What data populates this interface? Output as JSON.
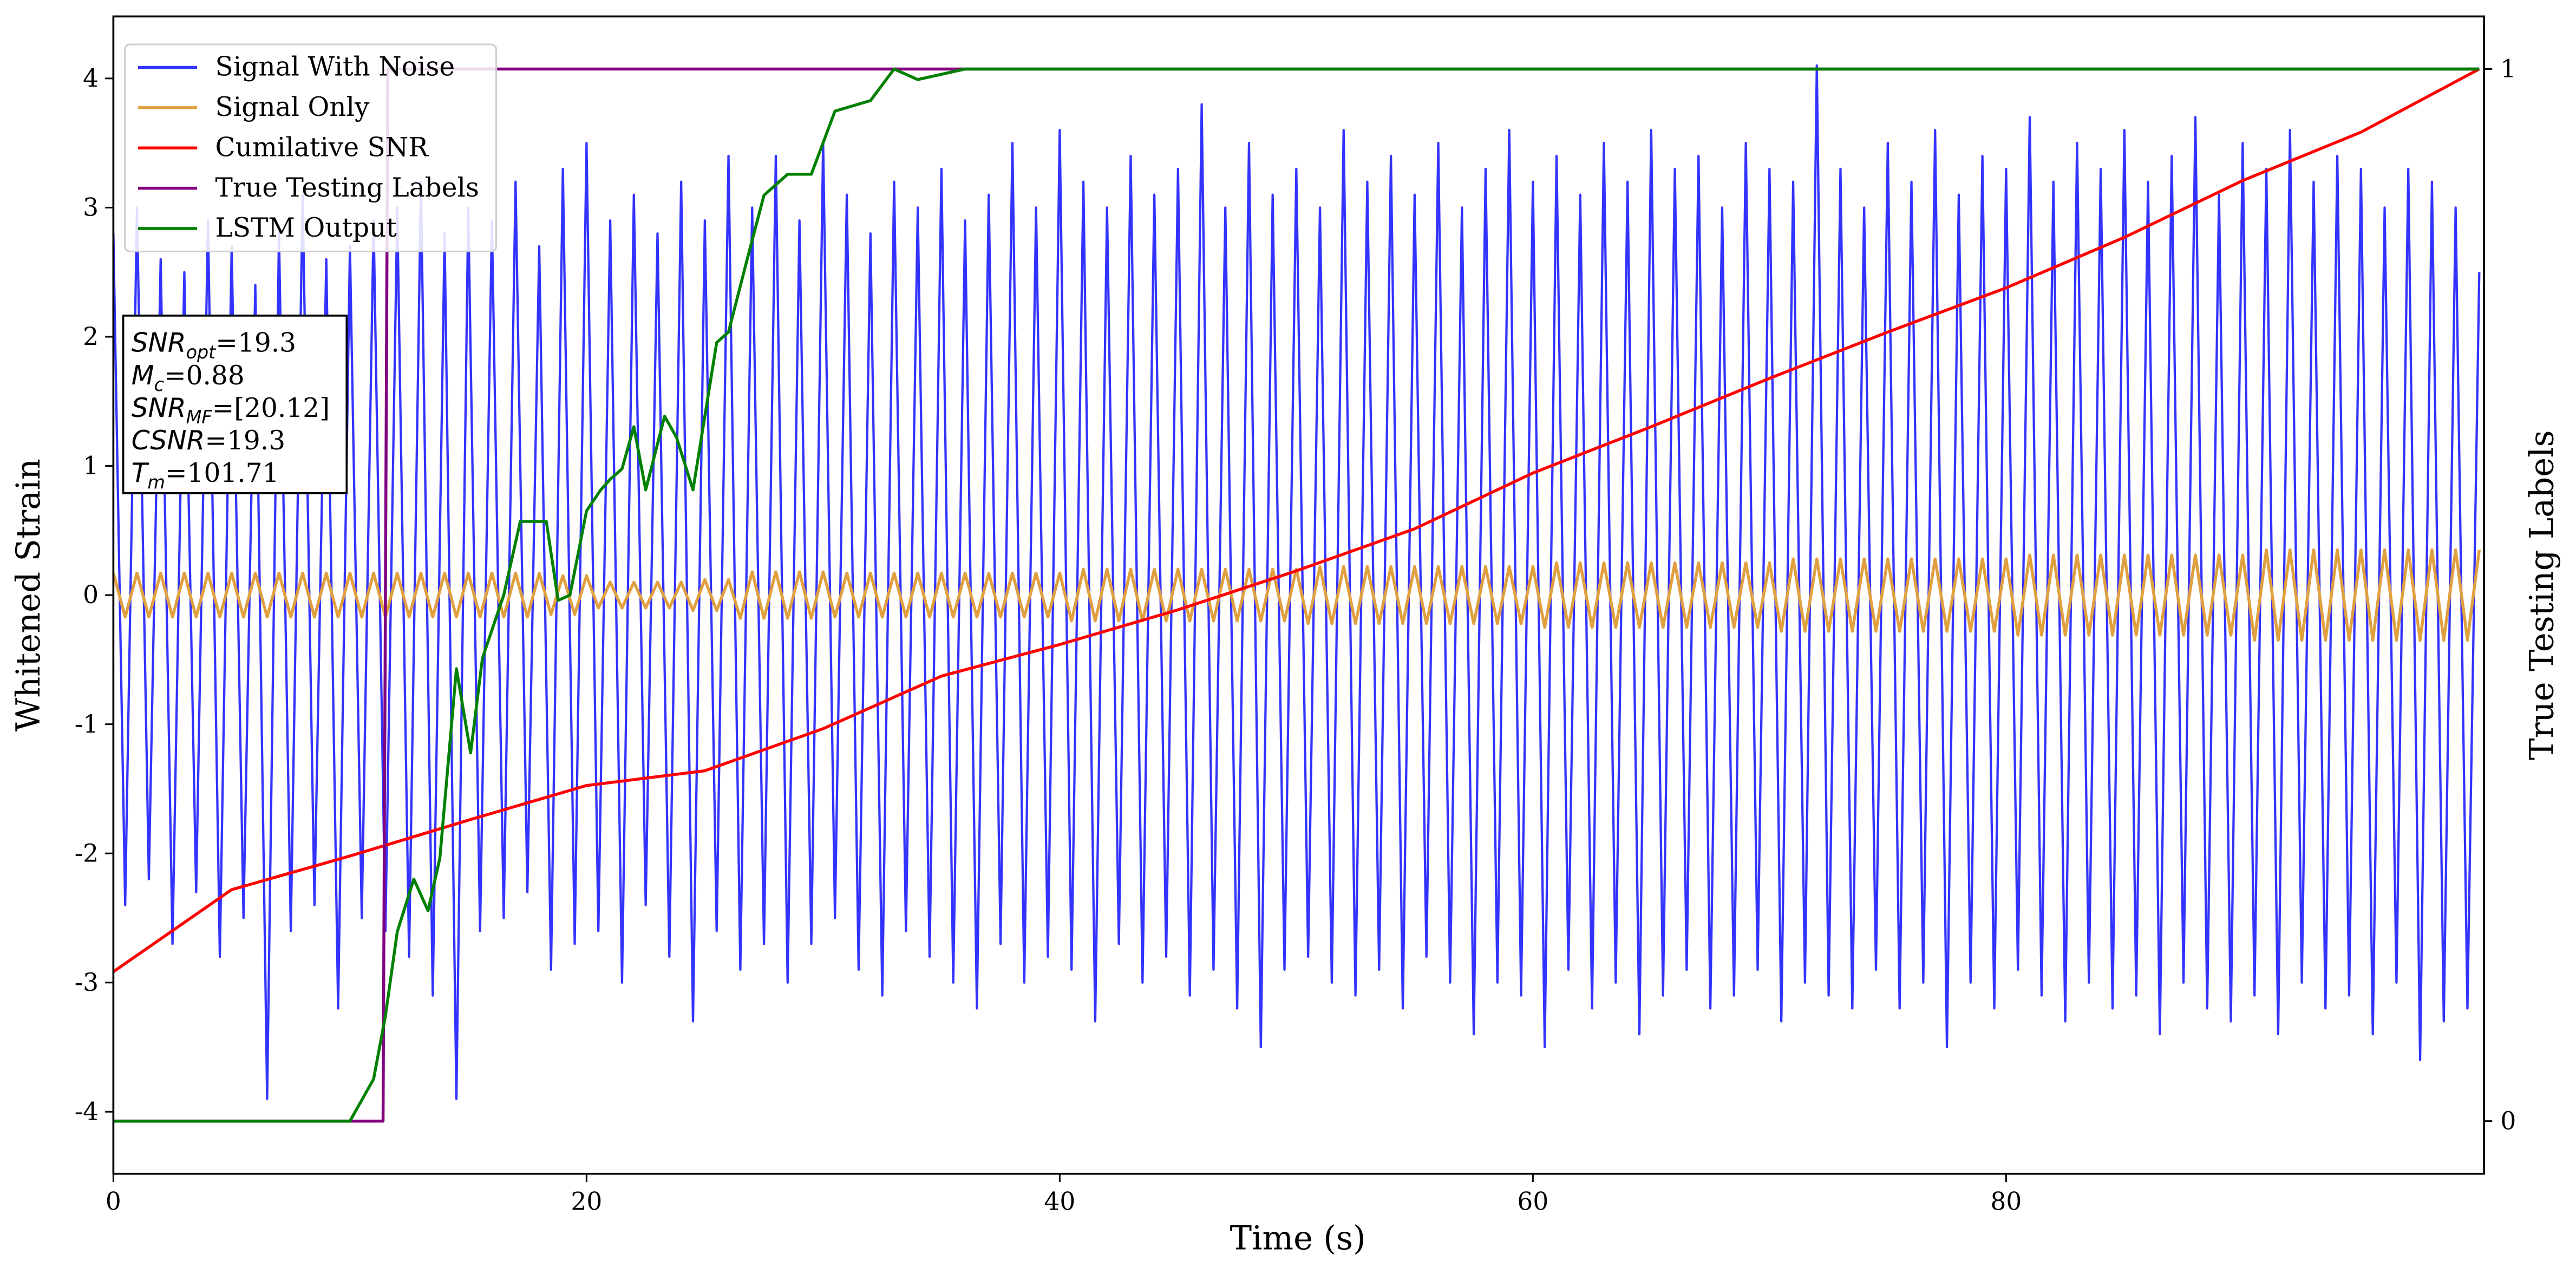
{
  "chart_data": {
    "type": "line",
    "xlabel": "Time (s)",
    "ylabel": "Whitened Strain",
    "y2label": "True Testing Labels",
    "x": [
      0,
      0.5,
      1,
      1.5,
      2,
      2.5,
      3,
      3.5,
      4,
      4.5,
      5,
      5.5,
      6,
      6.5,
      7,
      7.5,
      8,
      8.5,
      9,
      9.5,
      10,
      10.5,
      11,
      11.5,
      12,
      12.5,
      13,
      13.5,
      14,
      14.5,
      15,
      15.5,
      16,
      16.5,
      17,
      17.5,
      18,
      18.5,
      19,
      19.5,
      20,
      20.5,
      21,
      21.5,
      22,
      22.5,
      23,
      23.5,
      24,
      24.5,
      25,
      25.5,
      26,
      26.5,
      27,
      27.5,
      28,
      28.5,
      29,
      29.5,
      30,
      30.5,
      31,
      31.5,
      32,
      32.5,
      33,
      33.5,
      34,
      34.5,
      35,
      35.5,
      36,
      36.5,
      37,
      37.5,
      38,
      38.5,
      39,
      39.5,
      40,
      40.5,
      41,
      41.5,
      42,
      42.5,
      43,
      43.5,
      44,
      44.5,
      45,
      45.5,
      46,
      46.5,
      47,
      47.5,
      48,
      48.5,
      49,
      49.5,
      50,
      50.5,
      51,
      51.5,
      52,
      52.5,
      53,
      53.5,
      54,
      54.5,
      55,
      55.5,
      56,
      56.5,
      57,
      57.5,
      58,
      58.5,
      59,
      59.5,
      60,
      60.5,
      61,
      61.5,
      62,
      62.5,
      63,
      63.5,
      64,
      64.5,
      65,
      65.5,
      66,
      66.5,
      67,
      67.5,
      68,
      68.5,
      69,
      69.5,
      70,
      70.5,
      71,
      71.5,
      72,
      72.5,
      73,
      73.5,
      74,
      74.5,
      75,
      75.5,
      76,
      76.5,
      77,
      77.5,
      78,
      78.5,
      79,
      79.5,
      80,
      80.5,
      81,
      81.5,
      82,
      82.5,
      83,
      83.5,
      84,
      84.5,
      85,
      85.5,
      86,
      86.5,
      87,
      87.5,
      88,
      88.5,
      89,
      89.5,
      90,
      90.5,
      91,
      91.5,
      92,
      92.5,
      93,
      93.5,
      94,
      94.5,
      95,
      95.5,
      96,
      96.5,
      97,
      97.5,
      98,
      98.5,
      99,
      99.5,
      100
    ],
    "series": [
      {
        "name": "Signal With Noise",
        "color": "#3333ff",
        "axis": "y",
        "values": [
          2.8,
          -2.4,
          3.0,
          -2.2,
          2.6,
          -2.7,
          2.5,
          -2.3,
          2.9,
          -2.8,
          2.7,
          -2.5,
          2.4,
          -3.9,
          2.8,
          -2.6,
          3.1,
          -2.4,
          2.6,
          -3.2,
          2.7,
          -2.5,
          2.9,
          -2.6,
          3.0,
          -2.8,
          3.2,
          -3.1,
          2.8,
          -3.9,
          3.0,
          -2.6,
          2.9,
          -2.5,
          3.2,
          -2.3,
          2.7,
          -2.9,
          3.3,
          -2.7,
          3.5,
          -2.6,
          2.9,
          -3.0,
          3.1,
          -2.4,
          2.8,
          -2.8,
          3.2,
          -3.3,
          2.9,
          -2.6,
          3.4,
          -2.9,
          3.0,
          -2.7,
          3.4,
          -3.0,
          2.9,
          -2.7,
          3.5,
          -2.5,
          3.1,
          -2.9,
          2.8,
          -3.1,
          3.2,
          -2.6,
          3.0,
          -2.8,
          3.3,
          -3.0,
          2.9,
          -3.2,
          3.1,
          -2.7,
          3.5,
          -3.0,
          3.0,
          -2.8,
          3.6,
          -2.9,
          3.2,
          -3.3,
          3.0,
          -2.7,
          3.4,
          -3.0,
          3.1,
          -2.8,
          3.3,
          -3.1,
          3.8,
          -2.9,
          3.0,
          -3.2,
          3.5,
          -3.5,
          3.1,
          -2.9,
          3.3,
          -2.8,
          3.0,
          -3.0,
          3.6,
          -3.1,
          3.2,
          -2.9,
          3.4,
          -3.2,
          3.1,
          -2.8,
          3.5,
          -3.0,
          3.0,
          -3.4,
          3.3,
          -3.0,
          3.6,
          -3.1,
          3.2,
          -3.5,
          3.4,
          -2.9,
          3.1,
          -3.2,
          3.5,
          -3.0,
          3.2,
          -3.4,
          3.6,
          -3.1,
          3.3,
          -2.9,
          3.4,
          -3.2,
          3.0,
          -3.1,
          3.5,
          -2.9,
          3.3,
          -3.3,
          3.2,
          -3.0,
          4.1,
          -3.1,
          3.3,
          -3.2,
          3.0,
          -2.9,
          3.5,
          -3.2,
          3.2,
          -3.0,
          3.6,
          -3.5,
          3.1,
          -3.0,
          3.4,
          -3.2,
          3.3,
          -2.9,
          3.7,
          -3.1,
          3.2,
          -3.3,
          3.5,
          -3.0,
          3.3,
          -3.2,
          3.6,
          -3.1,
          3.2,
          -3.4,
          3.4,
          -3.0,
          3.7,
          -3.2,
          3.1,
          -3.3,
          3.5,
          -3.1,
          3.3,
          -3.4,
          3.6,
          -3.0,
          3.2,
          -3.2,
          3.4,
          -3.1,
          3.3,
          -3.4,
          3.0,
          -3.0,
          3.3,
          -3.6,
          3.2,
          -3.3,
          3.0,
          -3.2,
          2.5
        ]
      },
      {
        "name": "Signal Only",
        "color": "#e0a040",
        "axis": "y",
        "values": [
          0.17,
          -0.17,
          0.17,
          -0.17,
          0.17,
          -0.17,
          0.17,
          -0.17,
          0.17,
          -0.17,
          0.17,
          -0.17,
          0.17,
          -0.17,
          0.17,
          -0.17,
          0.17,
          -0.17,
          0.17,
          -0.17,
          0.17,
          -0.17,
          0.17,
          -0.17,
          0.17,
          -0.17,
          0.17,
          -0.17,
          0.17,
          -0.17,
          0.17,
          -0.17,
          0.17,
          -0.17,
          0.17,
          -0.17,
          0.17,
          -0.15,
          0.15,
          -0.15,
          0.15,
          -0.1,
          0.1,
          -0.1,
          0.1,
          -0.1,
          0.1,
          -0.1,
          0.1,
          -0.12,
          0.12,
          -0.12,
          0.12,
          -0.18,
          0.18,
          -0.18,
          0.18,
          -0.18,
          0.18,
          -0.18,
          0.18,
          -0.17,
          0.17,
          -0.17,
          0.17,
          -0.17,
          0.17,
          -0.17,
          0.17,
          -0.17,
          0.17,
          -0.17,
          0.17,
          -0.17,
          0.17,
          -0.17,
          0.17,
          -0.17,
          0.17,
          -0.17,
          0.17,
          -0.2,
          0.2,
          -0.2,
          0.2,
          -0.2,
          0.2,
          -0.2,
          0.2,
          -0.2,
          0.2,
          -0.2,
          0.2,
          -0.2,
          0.2,
          -0.2,
          0.2,
          -0.2,
          0.2,
          -0.2,
          0.2,
          -0.22,
          0.22,
          -0.22,
          0.22,
          -0.22,
          0.22,
          -0.22,
          0.22,
          -0.22,
          0.22,
          -0.22,
          0.22,
          -0.22,
          0.22,
          -0.22,
          0.22,
          -0.22,
          0.22,
          -0.22,
          0.22,
          -0.25,
          0.25,
          -0.25,
          0.25,
          -0.25,
          0.25,
          -0.25,
          0.25,
          -0.25,
          0.25,
          -0.25,
          0.25,
          -0.25,
          0.25,
          -0.25,
          0.25,
          -0.25,
          0.25,
          -0.25,
          0.25,
          -0.28,
          0.28,
          -0.28,
          0.28,
          -0.28,
          0.28,
          -0.28,
          0.28,
          -0.28,
          0.28,
          -0.28,
          0.28,
          -0.28,
          0.28,
          -0.28,
          0.28,
          -0.28,
          0.28,
          -0.28,
          0.28,
          -0.31,
          0.31,
          -0.31,
          0.31,
          -0.31,
          0.31,
          -0.31,
          0.31,
          -0.31,
          0.31,
          -0.31,
          0.31,
          -0.31,
          0.31,
          -0.31,
          0.31,
          -0.31,
          0.31,
          -0.31,
          0.31,
          -0.35,
          0.35,
          -0.35,
          0.35,
          -0.35,
          0.35,
          -0.35,
          0.35,
          -0.35,
          0.35,
          -0.35,
          0.35,
          -0.35,
          0.35,
          -0.35,
          0.35,
          -0.35,
          0.35,
          -0.35,
          0.35
        ]
      },
      {
        "name": "Cumilative SNR",
        "color": "#ff0000",
        "axis": "y2",
        "x": [
          0,
          5,
          10,
          15,
          20,
          25,
          30,
          35,
          40,
          45,
          50,
          55,
          60,
          65,
          70,
          75,
          80,
          85,
          90,
          95,
          100
        ],
        "values": [
          0.142,
          0.22,
          0.252,
          0.286,
          0.319,
          0.333,
          0.373,
          0.423,
          0.453,
          0.486,
          0.523,
          0.563,
          0.616,
          0.66,
          0.706,
          0.75,
          0.792,
          0.84,
          0.894,
          0.94,
          1.0
        ]
      },
      {
        "name": "True Testing Labels",
        "color": "#800080",
        "axis": "y2",
        "x": [
          0,
          11.4,
          11.6,
          100
        ],
        "values": [
          0,
          0,
          1,
          1
        ]
      },
      {
        "name": "LSTM Output",
        "color": "#008000",
        "axis": "y2",
        "x": [
          0,
          10,
          11,
          11.5,
          12,
          12.7,
          13.3,
          13.8,
          14.5,
          15.1,
          15.6,
          16.5,
          17.2,
          18.3,
          18.8,
          19.3,
          20,
          20.6,
          21,
          21.5,
          22,
          22.5,
          23.3,
          23.8,
          24.5,
          25.5,
          26,
          26.8,
          27.5,
          28.5,
          29.5,
          30.5,
          32,
          33,
          34,
          36,
          40,
          100
        ],
        "values": [
          0,
          0,
          0.04,
          0.1,
          0.18,
          0.23,
          0.2,
          0.25,
          0.43,
          0.35,
          0.44,
          0.5,
          0.57,
          0.57,
          0.495,
          0.5,
          0.58,
          0.6,
          0.61,
          0.62,
          0.66,
          0.6,
          0.67,
          0.65,
          0.6,
          0.74,
          0.75,
          0.82,
          0.88,
          0.9,
          0.9,
          0.96,
          0.97,
          1.0,
          0.99,
          1.0,
          1.0,
          1.0
        ]
      }
    ],
    "xlim": [
      0,
      100.2
    ],
    "xticks": [
      0,
      20,
      40,
      60,
      80
    ],
    "ylim": [
      -4.48,
      4.48
    ],
    "yticks": [
      -4,
      -3,
      -2,
      -1,
      0,
      1,
      2,
      3,
      4
    ],
    "y2lim": [
      -0.05,
      1.05
    ],
    "y2ticks": [
      0,
      1
    ],
    "legend": "upper left",
    "annotation": [
      {
        "text": "SNR",
        "sub": "opt",
        "suffix": "=19.3"
      },
      {
        "text": "M",
        "sub": "c",
        "suffix": "=0.88"
      },
      {
        "text": "SNR",
        "sub": "MF",
        "suffix": "=[20.12]"
      },
      {
        "text": "CSNR",
        "suffix": "=19.3"
      },
      {
        "text": "T",
        "sub": "m",
        "suffix": "=101.71"
      }
    ]
  }
}
